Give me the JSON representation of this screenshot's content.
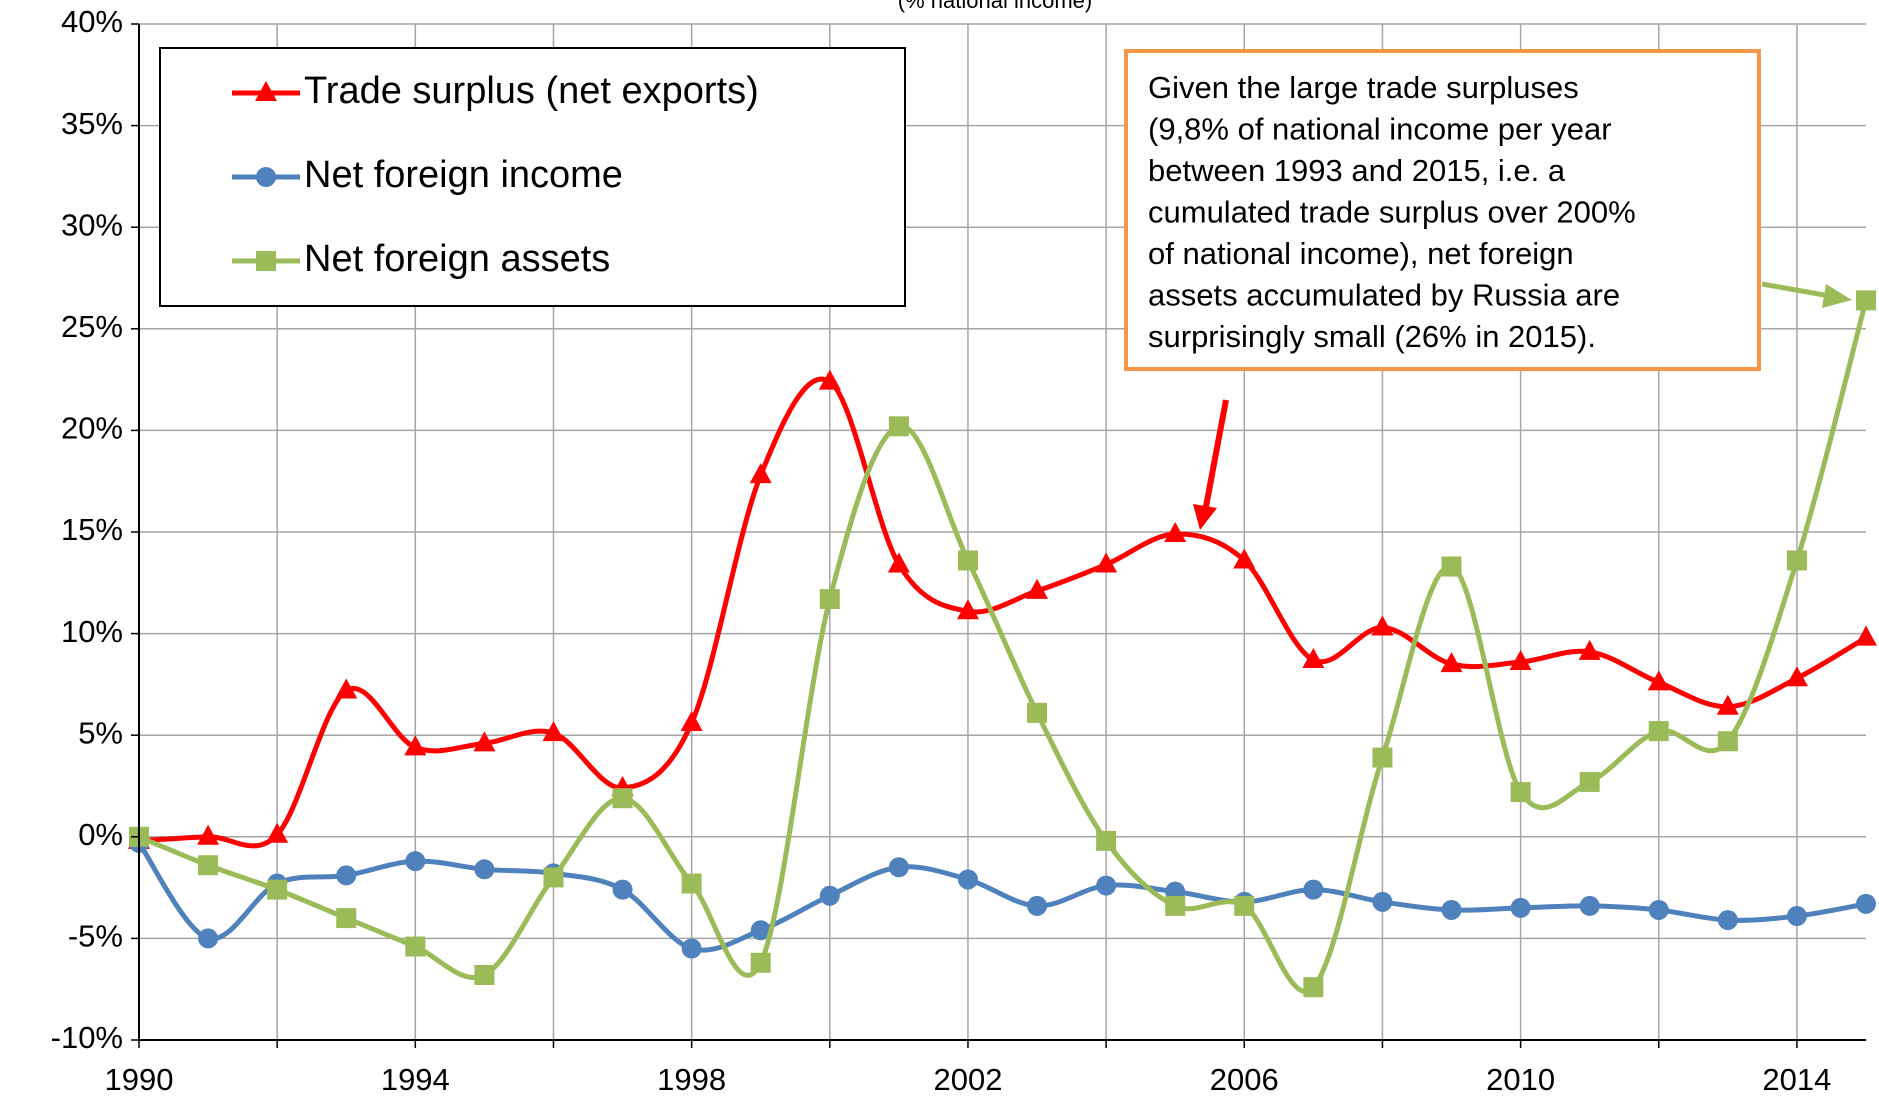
{
  "chart_data": {
    "type": "line",
    "subtitle": "(% national income)",
    "x": [
      1990,
      1991,
      1992,
      1993,
      1994,
      1995,
      1996,
      1997,
      1998,
      1999,
      2000,
      2001,
      2002,
      2003,
      2004,
      2005,
      2006,
      2007,
      2008,
      2009,
      2010,
      2011,
      2012,
      2013,
      2014,
      2015
    ],
    "series": [
      {
        "name": "Trade surplus (net exports)",
        "color": "#ff0000",
        "marker": "triangle",
        "values": [
          -0.2,
          0,
          0.1,
          7.2,
          4.4,
          4.6,
          5.1,
          2.4,
          5.6,
          17.8,
          22.4,
          13.4,
          11.1,
          12.1,
          13.4,
          14.9,
          13.6,
          8.7,
          10.3,
          8.5,
          8.6,
          9.1,
          7.6,
          6.4,
          7.8,
          9.8
        ]
      },
      {
        "name": "Net foreign income",
        "color": "#4f81bd",
        "marker": "circle",
        "values": [
          -0.3,
          -5.0,
          -2.3,
          -1.9,
          -1.2,
          -1.6,
          -1.8,
          -2.6,
          -5.5,
          -4.6,
          -2.9,
          -1.5,
          -2.1,
          -3.4,
          -2.4,
          -2.7,
          -3.2,
          -2.6,
          -3.2,
          -3.6,
          -3.5,
          -3.4,
          -3.6,
          -4.1,
          -3.9,
          -3.3
        ]
      },
      {
        "name": "Net foreign assets",
        "color": "#9bbb59",
        "marker": "square",
        "values": [
          0,
          -1.4,
          -2.6,
          -4.0,
          -5.4,
          -6.8,
          -2.0,
          1.9,
          -2.3,
          -6.2,
          11.7,
          20.2,
          13.6,
          6.1,
          -0.2,
          -3.4,
          -3.4,
          -7.4,
          3.9,
          13.3,
          2.2,
          2.7,
          5.2,
          4.7,
          13.6,
          26.4
        ]
      }
    ],
    "xlim": [
      1990,
      2015
    ],
    "xticks": [
      1990,
      1994,
      1998,
      2002,
      2006,
      2010,
      2014
    ],
    "x_minor_ticks": [
      1992,
      1996,
      2000,
      2004,
      2008,
      2012
    ],
    "ylim": [
      -10,
      40
    ],
    "yticks": [
      {
        "value": -10,
        "label": "-10%"
      },
      {
        "value": -5,
        "label": "-5%"
      },
      {
        "value": 0,
        "label": "0%"
      },
      {
        "value": 5,
        "label": "5%"
      },
      {
        "value": 10,
        "label": "10%"
      },
      {
        "value": 15,
        "label": "15%"
      },
      {
        "value": 20,
        "label": "20%"
      },
      {
        "value": 25,
        "label": "25%"
      },
      {
        "value": 30,
        "label": "30%"
      },
      {
        "value": 35,
        "label": "35%"
      },
      {
        "value": 40,
        "label": "40%"
      }
    ],
    "grid": true,
    "smooth": true,
    "legend": "upper left",
    "annotation": [
      "Given the large trade surpluses",
      "(9,8% of national income per year",
      "between 1993 and 2015, i.e. a",
      "cumulated trade surplus over 200%",
      "of national income), net foreign",
      "assets accumulated by Russia are",
      "surprisingly small (26% in 2015)."
    ]
  }
}
